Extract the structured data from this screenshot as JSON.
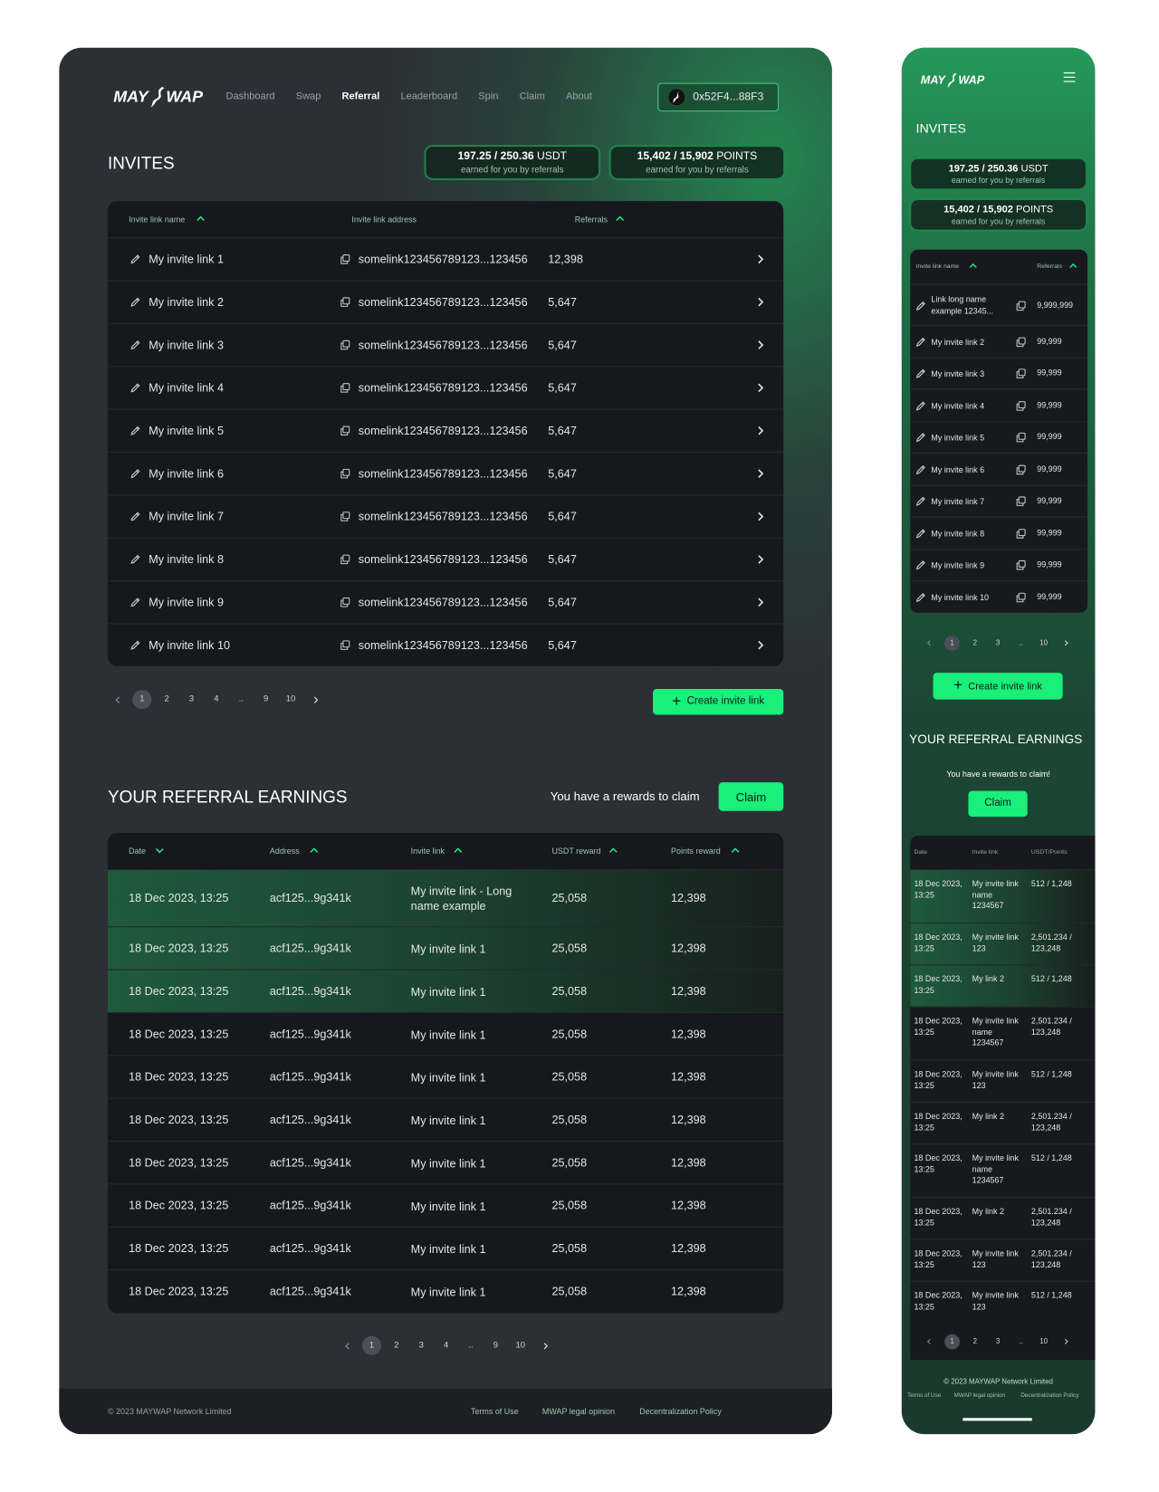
{
  "desktop": {
    "logo": [
      "MAY",
      "WAP"
    ],
    "nav": [
      "Dashboard",
      "Swap",
      "Referral",
      "Leaderboard",
      "Spin",
      "Claim",
      "About"
    ],
    "wallet": "0x52F4...88F3",
    "invites_title": "INVITES",
    "stats": [
      {
        "value": "197.25 / 250.36",
        "unit": "USDT",
        "caption": "earned for you by referrals"
      },
      {
        "value": "15,402 / 15,902",
        "unit": "POINTS",
        "caption": "earned for you by referrals"
      }
    ],
    "invites_table": {
      "headers": [
        "Invite link name",
        "Invite link address",
        "Referrals"
      ],
      "rows": [
        [
          "My invite link 1",
          "somelink123456789123...123456",
          "12,398"
        ],
        [
          "My invite link 2",
          "somelink123456789123...123456",
          "5,647"
        ],
        [
          "My invite link 3",
          "somelink123456789123...123456",
          "5,647"
        ],
        [
          "My invite link 4",
          "somelink123456789123...123456",
          "5,647"
        ],
        [
          "My invite link 5",
          "somelink123456789123...123456",
          "5,647"
        ],
        [
          "My invite link 6",
          "somelink123456789123...123456",
          "5,647"
        ],
        [
          "My invite link 7",
          "somelink123456789123...123456",
          "5,647"
        ],
        [
          "My invite link 8",
          "somelink123456789123...123456",
          "5,647"
        ],
        [
          "My invite link 9",
          "somelink123456789123...123456",
          "5,647"
        ],
        [
          "My invite link 10",
          "somelink123456789123...123456",
          "5,647"
        ]
      ]
    },
    "invites_pagination": [
      "1",
      "2",
      "3",
      "4",
      "..",
      "9",
      "10"
    ],
    "create_button": "Create invite link",
    "earnings_title": "YOUR REFERRAL EARNINGS",
    "claim_text": "You have a rewards to claim",
    "claim_button": "Claim",
    "earnings_table": {
      "headers": [
        "Date",
        "Address",
        "Invite link",
        "USDT reward",
        "Points reward"
      ],
      "rows": [
        [
          "18 Dec 2023, 13:25",
          "acf125...9g341k",
          "My invite link - Long name example",
          "25,058",
          "12,398"
        ],
        [
          "18 Dec 2023, 13:25",
          "acf125...9g341k",
          "My invite link 1",
          "25,058",
          "12,398"
        ],
        [
          "18 Dec 2023, 13:25",
          "acf125...9g341k",
          "My invite link 1",
          "25,058",
          "12,398"
        ],
        [
          "18 Dec 2023, 13:25",
          "acf125...9g341k",
          "My invite link 1",
          "25,058",
          "12,398"
        ],
        [
          "18 Dec 2023, 13:25",
          "acf125...9g341k",
          "My invite link 1",
          "25,058",
          "12,398"
        ],
        [
          "18 Dec 2023, 13:25",
          "acf125...9g341k",
          "My invite link 1",
          "25,058",
          "12,398"
        ],
        [
          "18 Dec 2023, 13:25",
          "acf125...9g341k",
          "My invite link 1",
          "25,058",
          "12,398"
        ],
        [
          "18 Dec 2023, 13:25",
          "acf125...9g341k",
          "My invite link 1",
          "25,058",
          "12,398"
        ],
        [
          "18 Dec 2023, 13:25",
          "acf125...9g341k",
          "My invite link 1",
          "25,058",
          "12,398"
        ],
        [
          "18 Dec 2023, 13:25",
          "acf125...9g341k",
          "My invite link 1",
          "25,058",
          "12,398"
        ]
      ]
    },
    "earnings_pagination": [
      "1",
      "2",
      "3",
      "4",
      "..",
      "9",
      "10"
    ],
    "footer": {
      "copyright": "© 2023 MAYWAP Network Limited",
      "links": [
        "Terms of Use",
        "MWAP legal opinion",
        "Decentralization Policy"
      ]
    }
  },
  "mobile": {
    "logo": [
      "MAY",
      "WAP"
    ],
    "invites_title": "INVITES",
    "stats": [
      {
        "value": "197.25 / 250.36",
        "unit": "USDT",
        "caption": "earned for you by referrals"
      },
      {
        "value": "15,402 / 15,902",
        "unit": "POINTS",
        "caption": "earned for you by referrals"
      }
    ],
    "invites_table": {
      "headers": [
        "Invite link name",
        "Referrals"
      ],
      "rows": [
        [
          "Link long name example 12345...",
          "9,999,999"
        ],
        [
          "My invite link 2",
          "99,999"
        ],
        [
          "My invite link 3",
          "99,999"
        ],
        [
          "My invite link 4",
          "99,999"
        ],
        [
          "My invite link 5",
          "99,999"
        ],
        [
          "My invite link 6",
          "99,999"
        ],
        [
          "My invite link 7",
          "99,999"
        ],
        [
          "My invite link 8",
          "99,999"
        ],
        [
          "My invite link 9",
          "99,999"
        ],
        [
          "My invite link 10",
          "99,999"
        ]
      ]
    },
    "invites_pagination": [
      "1",
      "2",
      "3",
      "..",
      "10"
    ],
    "create_button": "Create invite link",
    "earnings_title": "YOUR REFERRAL EARNINGS",
    "claim_text": "You have a rewards to claim!",
    "claim_button": "Claim",
    "earnings_table": {
      "headers": [
        "Date",
        "Invite link",
        "USDT/Points"
      ],
      "rows": [
        [
          "18 Dec 2023, 13:25",
          "My invite link name 1234567",
          "512 / 1,248"
        ],
        [
          "18 Dec 2023, 13:25",
          "My invite link 123",
          "2,501.234 / 123,248"
        ],
        [
          "18 Dec 2023, 13:25",
          "My link 2",
          "512 / 1,248"
        ],
        [
          "18 Dec 2023, 13:25",
          "My invite link name 1234567",
          "2,501.234 / 123,248"
        ],
        [
          "18 Dec 2023, 13:25",
          "My invite link 123",
          "512 / 1,248"
        ],
        [
          "18 Dec 2023, 13:25",
          "My link 2",
          "2,501.234 / 123,248"
        ],
        [
          "18 Dec 2023, 13:25",
          "My invite link name 1234567",
          "512 / 1,248"
        ],
        [
          "18 Dec 2023, 13:25",
          "My link 2",
          "2,501.234 / 123,248"
        ],
        [
          "18 Dec 2023, 13:25",
          "My invite link 123",
          "2,501.234 / 123,248"
        ],
        [
          "18 Dec 2023, 13:25",
          "My invite link 123",
          "512 / 1,248"
        ]
      ]
    },
    "earnings_pagination": [
      "1",
      "2",
      "3",
      "..",
      "10"
    ],
    "footer": {
      "copyright": "© 2023 MAYWAP Network Limited",
      "links": [
        "Terms of Use",
        "MWAP legal opinion",
        "Decentralization Policy"
      ]
    }
  }
}
